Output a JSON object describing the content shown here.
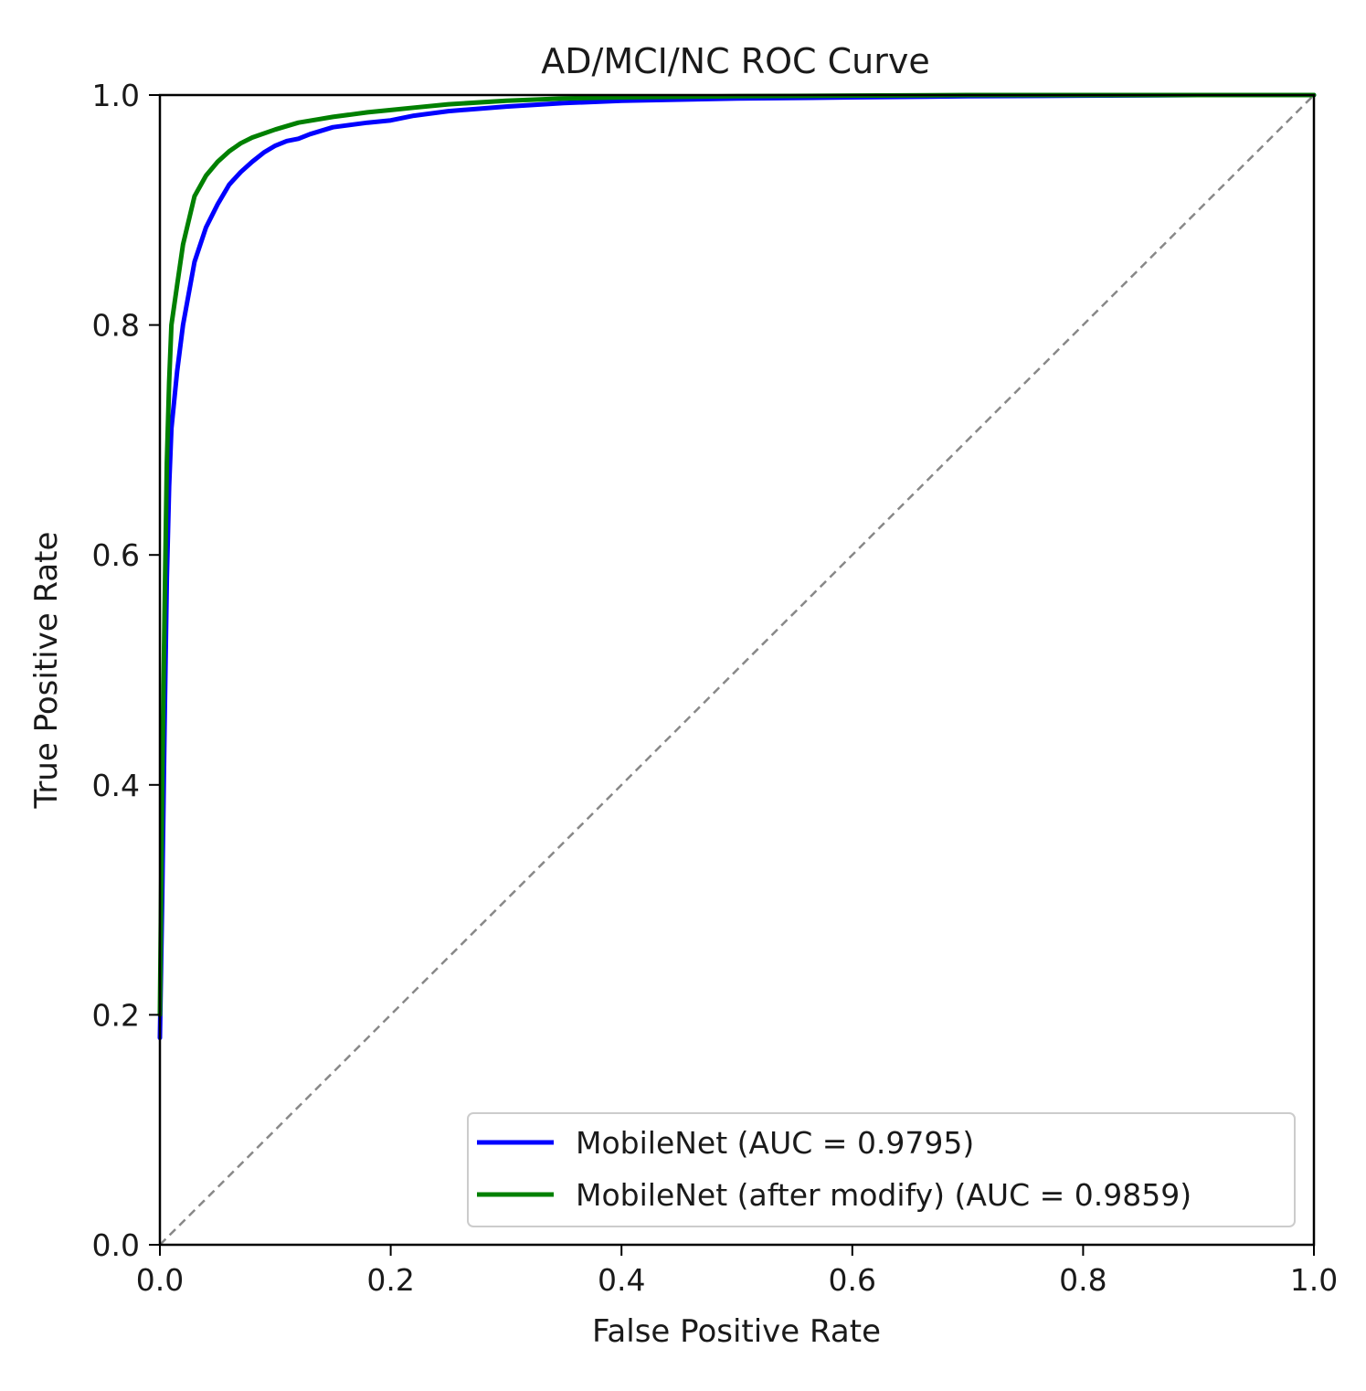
{
  "chart_data": {
    "type": "line",
    "title": "AD/MCI/NC ROC Curve",
    "xlabel": "False Positive Rate",
    "ylabel": "True Positive Rate",
    "xlim": [
      0.0,
      1.0
    ],
    "ylim": [
      0.0,
      1.0
    ],
    "xticks": [
      "0.0",
      "0.2",
      "0.4",
      "0.6",
      "0.8",
      "1.0"
    ],
    "yticks": [
      "0.0",
      "0.2",
      "0.4",
      "0.6",
      "0.8",
      "1.0"
    ],
    "grid": false,
    "legend_position": "lower-right",
    "series": [
      {
        "name": "MobileNet (AUC = 0.9795)",
        "color": "#0000ff",
        "x": [
          0.0,
          0.002,
          0.004,
          0.006,
          0.008,
          0.01,
          0.015,
          0.02,
          0.03,
          0.04,
          0.05,
          0.06,
          0.07,
          0.08,
          0.09,
          0.1,
          0.11,
          0.12,
          0.13,
          0.15,
          0.18,
          0.2,
          0.22,
          0.25,
          0.3,
          0.35,
          0.4,
          0.5,
          0.6,
          0.7,
          0.8,
          0.9,
          1.0
        ],
        "y": [
          0.18,
          0.3,
          0.45,
          0.58,
          0.66,
          0.71,
          0.76,
          0.8,
          0.855,
          0.885,
          0.905,
          0.922,
          0.933,
          0.942,
          0.95,
          0.956,
          0.96,
          0.962,
          0.966,
          0.972,
          0.976,
          0.978,
          0.982,
          0.986,
          0.99,
          0.993,
          0.995,
          0.997,
          0.998,
          0.999,
          0.9995,
          1.0,
          1.0
        ]
      },
      {
        "name": "MobileNet (after modify) (AUC = 0.9859)",
        "color": "#008000",
        "x": [
          0.0,
          0.002,
          0.004,
          0.006,
          0.008,
          0.01,
          0.015,
          0.02,
          0.03,
          0.04,
          0.05,
          0.06,
          0.07,
          0.08,
          0.1,
          0.12,
          0.15,
          0.18,
          0.2,
          0.22,
          0.25,
          0.3,
          0.35,
          0.4,
          0.5,
          0.6,
          0.7,
          0.8,
          0.9,
          1.0
        ],
        "y": [
          0.2,
          0.4,
          0.55,
          0.68,
          0.75,
          0.8,
          0.835,
          0.87,
          0.912,
          0.93,
          0.942,
          0.951,
          0.958,
          0.963,
          0.97,
          0.976,
          0.981,
          0.985,
          0.987,
          0.989,
          0.992,
          0.995,
          0.997,
          0.998,
          0.999,
          0.9995,
          1.0,
          1.0,
          1.0,
          1.0
        ]
      }
    ],
    "reference_line": {
      "style": "dashed",
      "color": "#888888",
      "x": [
        0.0,
        1.0
      ],
      "y": [
        0.0,
        1.0
      ]
    }
  }
}
